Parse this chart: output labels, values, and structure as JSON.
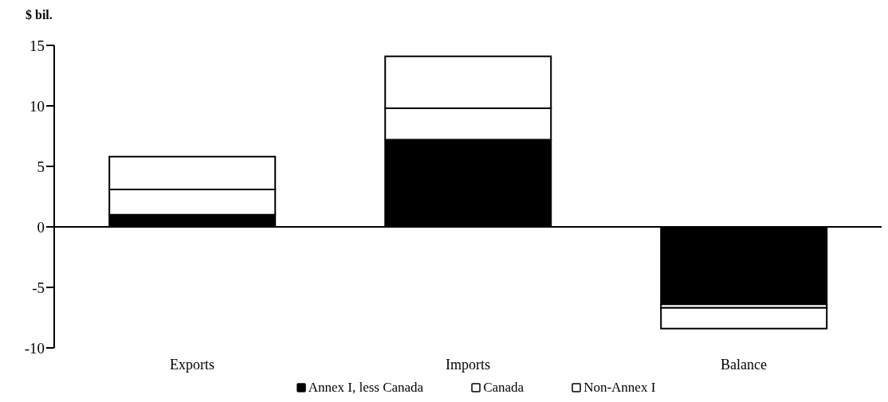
{
  "chart_data": {
    "type": "bar",
    "stacked": true,
    "ylabel": "$ bil.",
    "categories": [
      "Exports",
      "Imports",
      "Balance"
    ],
    "series": [
      {
        "name": "Annex I, less Canada",
        "color": "#000000",
        "values": [
          1.0,
          7.2,
          -6.4
        ]
      },
      {
        "name": "Canada",
        "color": "#ffffff",
        "values": [
          2.1,
          2.6,
          -0.3
        ]
      },
      {
        "name": "Non-Annex I",
        "color": "#ffffff",
        "values": [
          2.7,
          4.3,
          -1.7
        ]
      }
    ],
    "ylim": [
      -10,
      15
    ],
    "yticks": [
      -10,
      -5,
      0,
      5,
      10,
      15
    ],
    "legend": "bottom"
  }
}
